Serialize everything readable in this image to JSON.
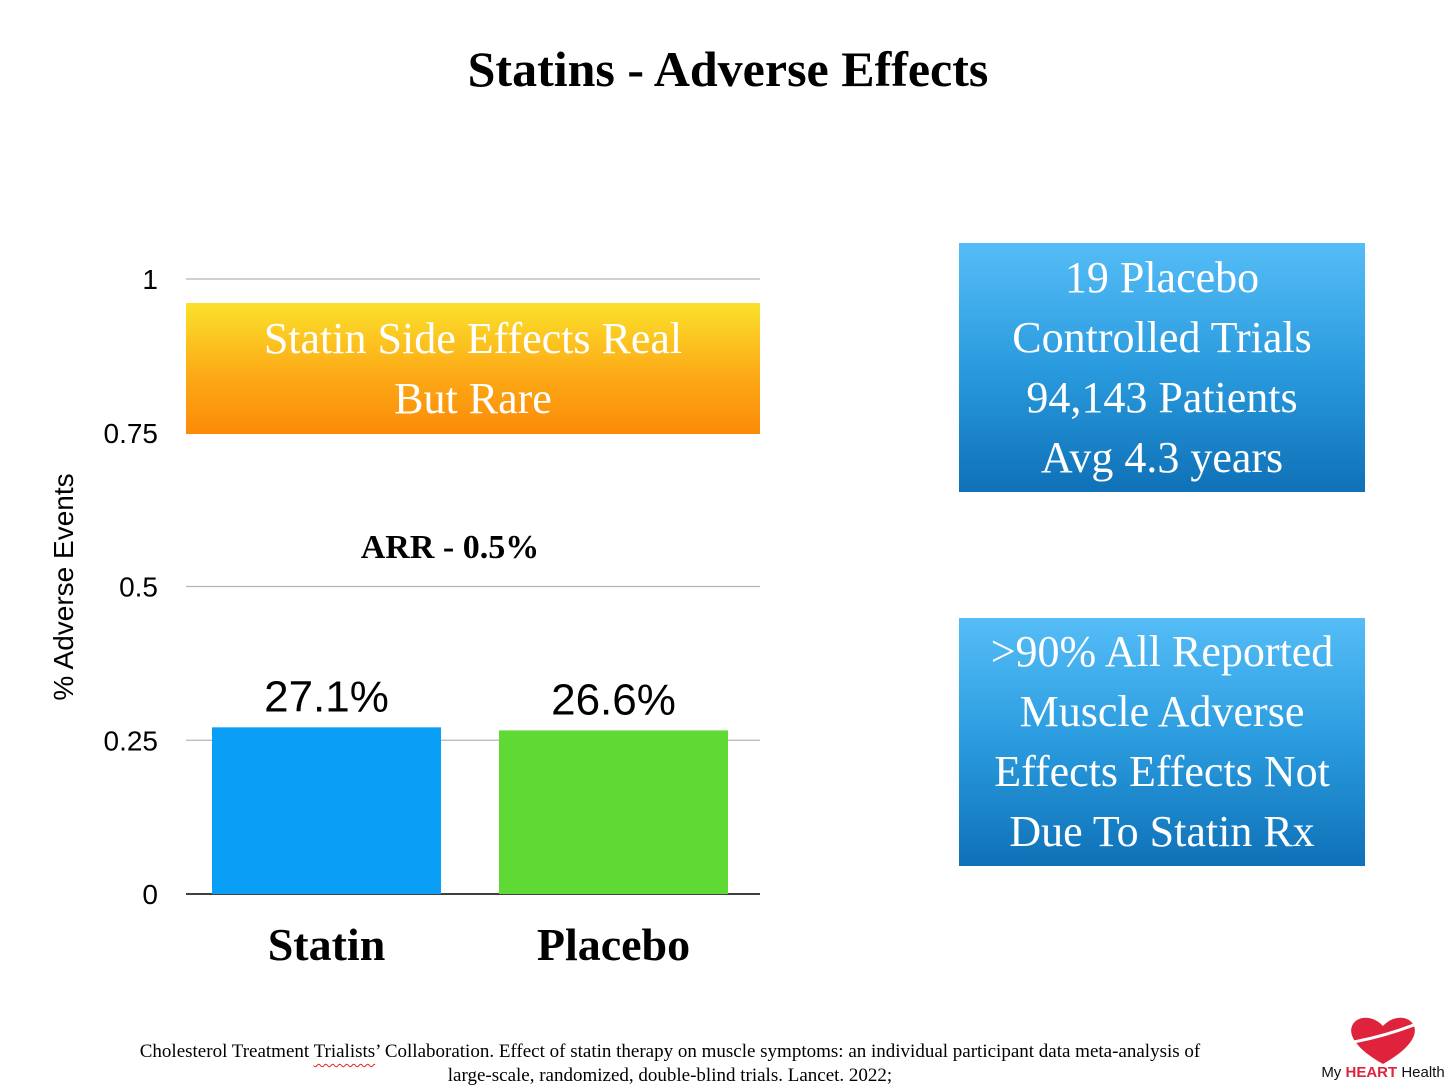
{
  "title": "Statins - Adverse Effects",
  "chart_data": {
    "type": "bar",
    "categories": [
      "Statin",
      "Placebo"
    ],
    "values": [
      0.271,
      0.266
    ],
    "data_labels": [
      "27.1%",
      "26.6%"
    ],
    "bar_colors": [
      "#0a9ef6",
      "#5fd933"
    ],
    "ylabel": "% Adverse Events",
    "ylim": [
      0,
      1
    ],
    "yticks": [
      0,
      0.25,
      0.5,
      0.75,
      1
    ],
    "ytick_labels": [
      "0",
      "0.25",
      "0.5",
      "0.75",
      "1"
    ],
    "grid": true,
    "annotation": "ARR - 0.5%"
  },
  "orange_box": {
    "lines": [
      "Statin Side Effects Real",
      "But Rare"
    ]
  },
  "info_box_1": {
    "lines": [
      "19 Placebo",
      "Controlled Trials",
      "94,143 Patients",
      "Avg 4.3 years"
    ]
  },
  "info_box_2": {
    "lines": [
      ">90% All Reported",
      "Muscle Adverse",
      "Effects Effects Not",
      "Due To Statin Rx"
    ]
  },
  "citation": {
    "line1_before": "Cholesterol Treatment ",
    "line1_underlined": "Trialists",
    "line1_after": "’ Collaboration. Effect of statin therapy on muscle symptoms: an individual participant data meta-analysis of",
    "line2": "large-scale, randomized, double-blind trials. Lancet. 2022;"
  },
  "logo": {
    "prefix": "My",
    "highlight": "HEART",
    "suffix": "Health",
    "heart_color": "#e0233d"
  }
}
